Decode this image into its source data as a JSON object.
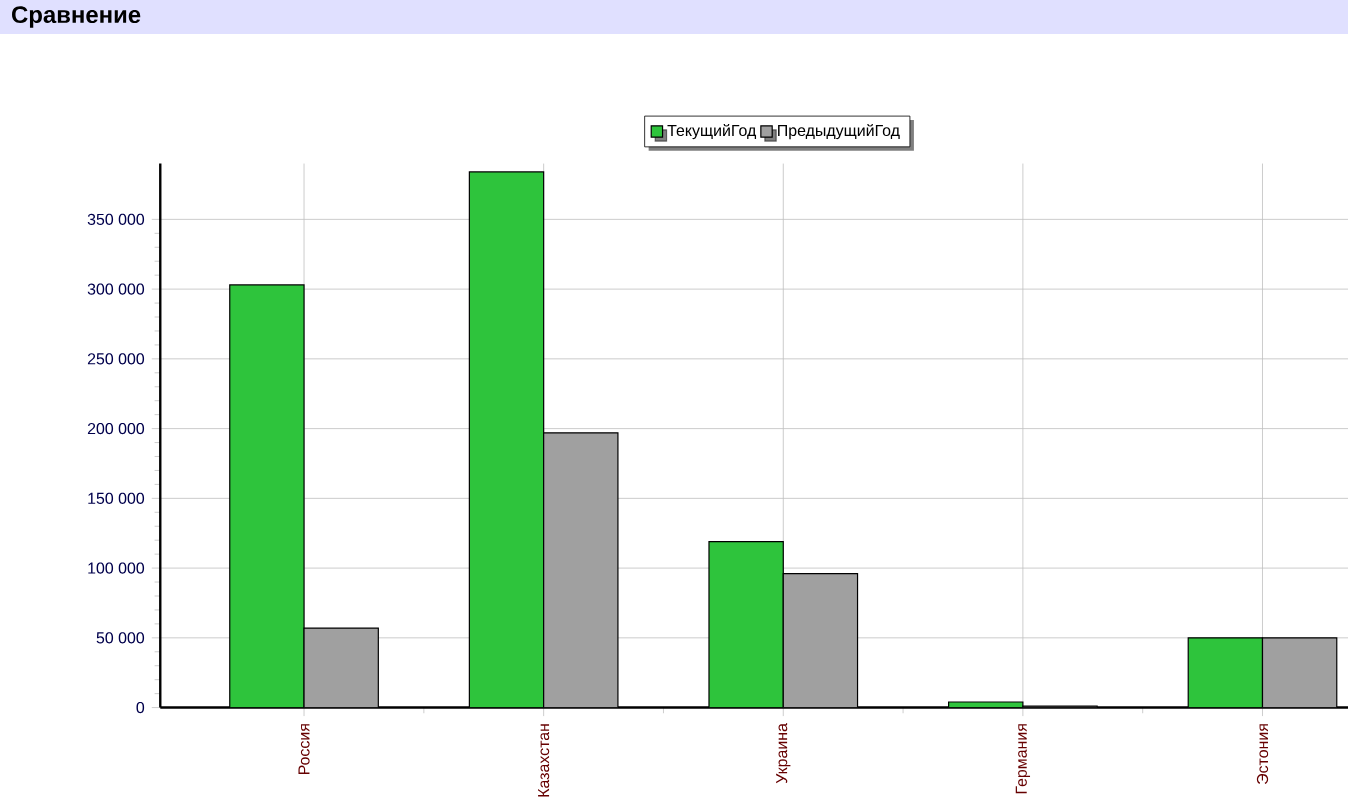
{
  "chart_data": {
    "type": "bar",
    "title": "Сравнение",
    "categories": [
      "Россия",
      "Казахстан",
      "Украина",
      "Германия",
      "Эстония"
    ],
    "series": [
      {
        "name": "ТекущийГод",
        "color": "#2ec43c",
        "values": [
          303000,
          384000,
          119000,
          4000,
          50000
        ]
      },
      {
        "name": "ПредыдущийГод",
        "color": "#a0a0a0",
        "values": [
          57000,
          197000,
          96000,
          1000,
          50000
        ]
      }
    ],
    "ylim": [
      0,
      390000
    ],
    "yticks": [
      {
        "value": 0,
        "label": "0"
      },
      {
        "value": 50000,
        "label": "50 000"
      },
      {
        "value": 100000,
        "label": "100 000"
      },
      {
        "value": 150000,
        "label": "150 000"
      },
      {
        "value": 200000,
        "label": "200 000"
      },
      {
        "value": 250000,
        "label": "250 000"
      },
      {
        "value": 300000,
        "label": "300 000"
      },
      {
        "value": 350000,
        "label": "350 000"
      }
    ],
    "grid": true,
    "legend": "top"
  }
}
